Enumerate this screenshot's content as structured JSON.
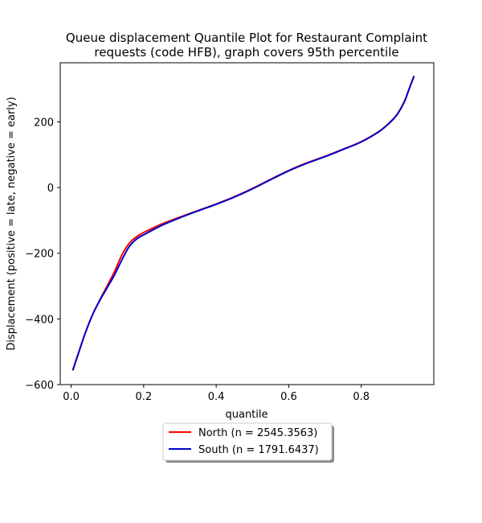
{
  "chart_data": {
    "type": "line",
    "title_lines": [
      "Queue displacement Quantile Plot for Restaurant Complaint",
      "requests (code HFB), graph covers 95th percentile"
    ],
    "xlabel": "quantile",
    "ylabel": "Displacement (positive = late, negative = early)",
    "xlim": [
      -0.03,
      1.0
    ],
    "ylim": [
      -600,
      380
    ],
    "xticks": [
      {
        "value": 0.0,
        "label": "0.0"
      },
      {
        "value": 0.2,
        "label": "0.2"
      },
      {
        "value": 0.4,
        "label": "0.4"
      },
      {
        "value": 0.6,
        "label": "0.6"
      },
      {
        "value": 0.8,
        "label": "0.8"
      }
    ],
    "yticks": [
      {
        "value": -600,
        "label": "−600"
      },
      {
        "value": -400,
        "label": "−400"
      },
      {
        "value": -200,
        "label": "−200"
      },
      {
        "value": 0,
        "label": "0"
      },
      {
        "value": 200,
        "label": "200"
      }
    ],
    "grid": false,
    "legend_placement": "below plot, centered",
    "series": [
      {
        "name": "North (n = 2545.3563)",
        "color": "#ff0000",
        "x": [
          0.005,
          0.02,
          0.04,
          0.06,
          0.08,
          0.1,
          0.12,
          0.14,
          0.16,
          0.18,
          0.2,
          0.25,
          0.3,
          0.35,
          0.4,
          0.45,
          0.5,
          0.55,
          0.6,
          0.65,
          0.7,
          0.75,
          0.8,
          0.85,
          0.88,
          0.9,
          0.92,
          0.93,
          0.945
        ],
        "y": [
          -555,
          -505,
          -440,
          -385,
          -340,
          -298,
          -255,
          -205,
          -170,
          -150,
          -137,
          -111,
          -90,
          -70,
          -50,
          -28,
          -3,
          25,
          52,
          75,
          95,
          117,
          140,
          172,
          200,
          225,
          265,
          295,
          338
        ]
      },
      {
        "name": "South (n = 1791.6437)",
        "color": "#0000cc",
        "x": [
          0.005,
          0.02,
          0.04,
          0.06,
          0.08,
          0.1,
          0.12,
          0.14,
          0.16,
          0.18,
          0.2,
          0.25,
          0.3,
          0.35,
          0.4,
          0.45,
          0.5,
          0.55,
          0.6,
          0.65,
          0.7,
          0.75,
          0.8,
          0.85,
          0.88,
          0.9,
          0.92,
          0.93,
          0.945
        ],
        "y": [
          -555,
          -505,
          -440,
          -385,
          -342,
          -304,
          -265,
          -220,
          -180,
          -157,
          -144,
          -115,
          -92,
          -71,
          -51,
          -29,
          -4,
          24,
          51,
          74,
          94,
          116,
          139,
          171,
          199,
          224,
          264,
          294,
          338
        ]
      }
    ]
  }
}
